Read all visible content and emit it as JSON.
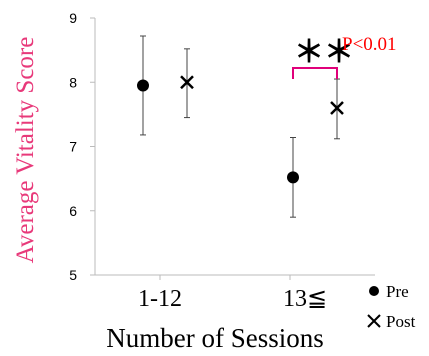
{
  "chart_data": {
    "type": "scatter",
    "title": "",
    "xlabel": "Number of Sessions",
    "ylabel": "Average Vitality Score",
    "ylim": [
      5,
      9
    ],
    "yticks": [
      "5",
      "6",
      "7",
      "8",
      "9"
    ],
    "categories": [
      "1-12",
      "13≦"
    ],
    "series": [
      {
        "name": "Pre",
        "marker": "circle",
        "values": [
          7.95,
          6.52
        ],
        "error_low": [
          7.18,
          5.9
        ],
        "error_high": [
          8.72,
          7.14
        ]
      },
      {
        "name": "Post",
        "marker": "x",
        "values": [
          8.0,
          7.6
        ],
        "error_low": [
          7.45,
          7.12
        ],
        "error_high": [
          8.52,
          8.05
        ]
      }
    ],
    "annotation": {
      "stars": "＊＊",
      "text": "P<0.01",
      "category": "13≦"
    },
    "grid": false,
    "legend_position": "bottom-right",
    "colors": {
      "ylabel": "#e8397a",
      "annotation_text": "#ff0000",
      "bracket": "#e0007a",
      "axis": "#bbbbbb",
      "marks": "#000000"
    }
  }
}
